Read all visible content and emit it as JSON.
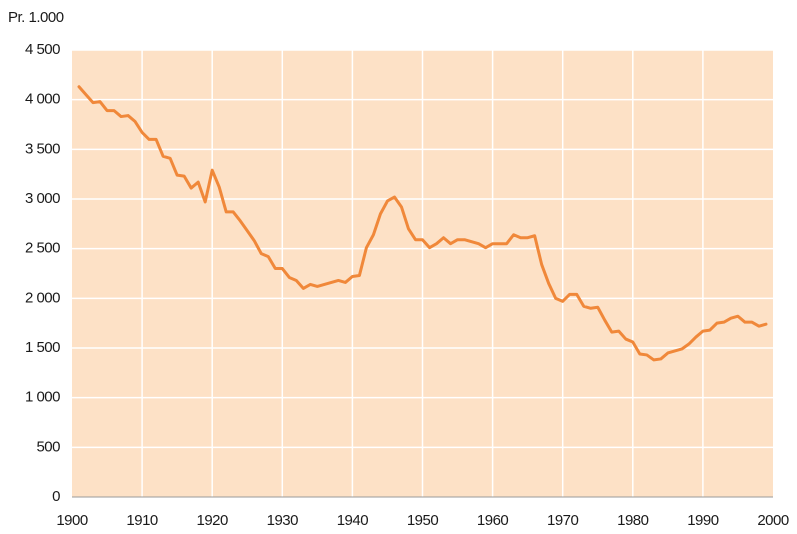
{
  "chart_data": {
    "type": "line",
    "y_label": "Pr. 1.000",
    "x": [
      1901,
      1902,
      1903,
      1904,
      1905,
      1906,
      1907,
      1908,
      1909,
      1910,
      1911,
      1912,
      1913,
      1914,
      1915,
      1916,
      1917,
      1918,
      1919,
      1920,
      1921,
      1922,
      1923,
      1924,
      1925,
      1926,
      1927,
      1928,
      1929,
      1930,
      1931,
      1932,
      1933,
      1934,
      1935,
      1936,
      1937,
      1938,
      1939,
      1940,
      1941,
      1942,
      1943,
      1944,
      1945,
      1946,
      1947,
      1948,
      1949,
      1950,
      1951,
      1952,
      1953,
      1954,
      1955,
      1956,
      1957,
      1958,
      1959,
      1960,
      1961,
      1962,
      1963,
      1964,
      1965,
      1966,
      1967,
      1968,
      1969,
      1970,
      1971,
      1972,
      1973,
      1974,
      1975,
      1976,
      1977,
      1978,
      1979,
      1980,
      1981,
      1982,
      1983,
      1984,
      1985,
      1986,
      1987,
      1988,
      1989,
      1990,
      1991,
      1992,
      1993,
      1994,
      1995,
      1996,
      1997,
      1998,
      1999
    ],
    "values": [
      4130,
      4050,
      3970,
      3980,
      3890,
      3890,
      3830,
      3840,
      3780,
      3670,
      3600,
      3600,
      3430,
      3410,
      3240,
      3230,
      3110,
      3170,
      2970,
      3290,
      3120,
      2870,
      2870,
      2780,
      2680,
      2580,
      2450,
      2420,
      2300,
      2300,
      2210,
      2180,
      2100,
      2140,
      2120,
      2140,
      2160,
      2180,
      2160,
      2220,
      2230,
      2510,
      2640,
      2850,
      2980,
      3020,
      2920,
      2700,
      2590,
      2590,
      2510,
      2550,
      2610,
      2550,
      2590,
      2590,
      2570,
      2550,
      2510,
      2550,
      2550,
      2550,
      2640,
      2610,
      2610,
      2630,
      2340,
      2150,
      2000,
      1970,
      2040,
      2040,
      1920,
      1900,
      1910,
      1780,
      1660,
      1670,
      1590,
      1560,
      1440,
      1430,
      1380,
      1390,
      1450,
      1470,
      1490,
      1540,
      1610,
      1670,
      1680,
      1750,
      1760,
      1800,
      1820,
      1760,
      1760,
      1720,
      1740
    ],
    "color": "#f0883a",
    "background": "#fde1c6",
    "xlim": [
      1900,
      2000
    ],
    "xticks": [
      1900,
      1910,
      1920,
      1930,
      1940,
      1950,
      1960,
      1970,
      1980,
      1990,
      2000
    ],
    "ylim": [
      0,
      4500
    ],
    "yticks": [
      {
        "value": 0,
        "label": "0"
      },
      {
        "value": 500,
        "label": "500"
      },
      {
        "value": 1000,
        "label": "1 000"
      },
      {
        "value": 1500,
        "label": "1 500"
      },
      {
        "value": 2000,
        "label": "2 000"
      },
      {
        "value": 2500,
        "label": "2 500"
      },
      {
        "value": 3000,
        "label": "3 000"
      },
      {
        "value": 3500,
        "label": "3 500"
      },
      {
        "value": 4000,
        "label": "4 000"
      },
      {
        "value": 4500,
        "label": "4 500"
      }
    ],
    "grid": true
  }
}
